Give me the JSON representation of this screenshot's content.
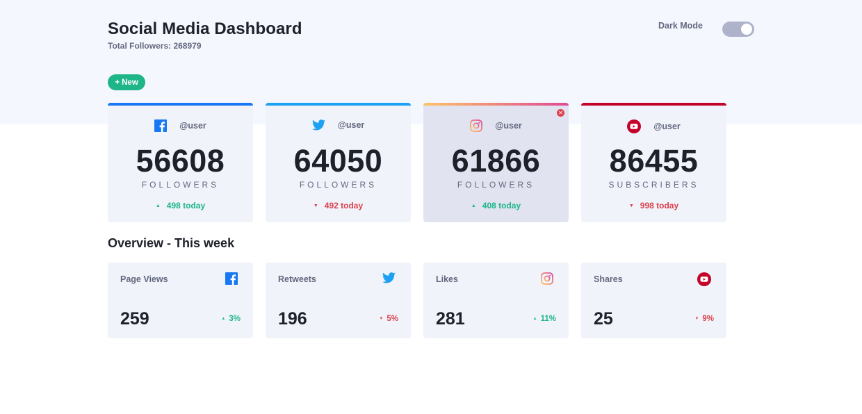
{
  "header": {
    "title": "Social Media Dashboard",
    "total_followers": "Total Followers: 268979"
  },
  "dark_mode": {
    "label": "Dark Mode",
    "enabled": true
  },
  "new_button": {
    "label": "+ New"
  },
  "colors": {
    "facebook": "#1877f2",
    "twitter": "#1da1f2",
    "instagram_gradient": [
      "#fdc468",
      "#df4996"
    ],
    "youtube": "#c4032a",
    "up": "#1eb589",
    "down": "#dc414c"
  },
  "cards": [
    {
      "platform": "facebook",
      "icon": "facebook-icon",
      "handle": "@user",
      "count": "56608",
      "label": "FOLLOWERS",
      "change": "498 today",
      "trend": "up"
    },
    {
      "platform": "twitter",
      "icon": "twitter-icon",
      "handle": "@user",
      "count": "64050",
      "label": "FOLLOWERS",
      "change": "492 today",
      "trend": "down"
    },
    {
      "platform": "instagram",
      "icon": "instagram-icon",
      "handle": "@user",
      "count": "61866",
      "label": "FOLLOWERS",
      "change": "408 today",
      "trend": "up"
    },
    {
      "platform": "youtube",
      "icon": "youtube-icon",
      "handle": "@user",
      "count": "86455",
      "label": "SUBSCRIBERS",
      "change": "998 today",
      "trend": "down"
    }
  ],
  "overview": {
    "title": "Overview - This week",
    "items": [
      {
        "label": "Page Views",
        "icon": "facebook-icon",
        "value": "259",
        "change": "3%",
        "trend": "up"
      },
      {
        "label": "Retweets",
        "icon": "twitter-icon",
        "value": "196",
        "change": "5%",
        "trend": "down"
      },
      {
        "label": "Likes",
        "icon": "instagram-icon",
        "value": "281",
        "change": "11%",
        "trend": "up"
      },
      {
        "label": "Shares",
        "icon": "youtube-icon",
        "value": "25",
        "change": "9%",
        "trend": "down"
      }
    ]
  }
}
